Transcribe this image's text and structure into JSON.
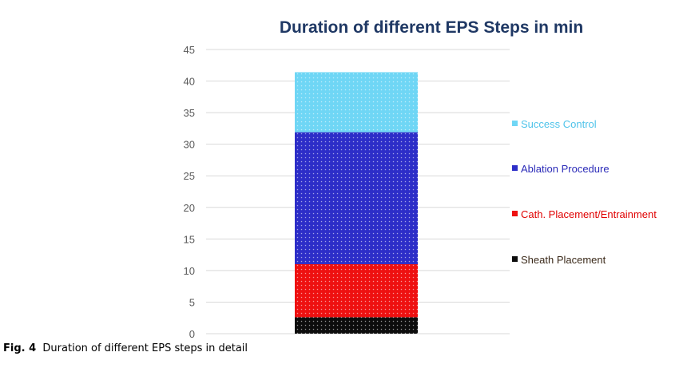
{
  "chart_data": {
    "type": "bar",
    "stacked": true,
    "title": "Duration of different EPS Steps in min",
    "xlabel": "",
    "ylabel": "",
    "ylim": [
      0,
      45
    ],
    "yticks": [
      0,
      5,
      10,
      15,
      20,
      25,
      30,
      35,
      40,
      45
    ],
    "grid": true,
    "legend_position": "right",
    "categories": [
      ""
    ],
    "series": [
      {
        "name": "Sheath Placement",
        "values": [
          2.6
        ],
        "color": "#0d0d0d",
        "label_color": "#3b2a1a"
      },
      {
        "name": "Cath. Placement/Entrainment",
        "values": [
          8.4
        ],
        "color": "#ee1111",
        "label_color": "#e00000"
      },
      {
        "name": "Ablation Procedure",
        "values": [
          20.9
        ],
        "color": "#2d2ec8",
        "label_color": "#2b2bb8"
      },
      {
        "name": "Success Control",
        "values": [
          9.5
        ],
        "color": "#6fd6f5",
        "label_color": "#4fc3ea"
      }
    ]
  },
  "caption": {
    "label": "Fig. 4",
    "text": "Duration of different EPS steps in detail"
  }
}
